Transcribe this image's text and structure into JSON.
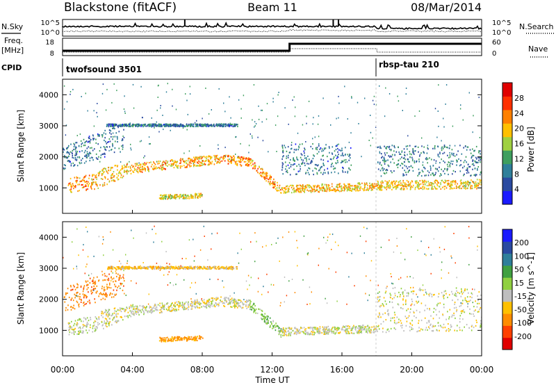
{
  "header": {
    "station": "Blackstone (fitACF)",
    "beam": "Beam 11",
    "date": "08/Mar/2014"
  },
  "left_labels": {
    "nsky": "N.Sky",
    "freq_line1": "Freq.",
    "freq_line2": "[MHz]",
    "cpid": "CPID"
  },
  "right_labels": {
    "nsearch": "N.Search",
    "nave": "Nave"
  },
  "noise_panel": {
    "left_ticks": [
      "10^5",
      "10^0"
    ],
    "right_ticks": [
      "10^5",
      "10^0"
    ]
  },
  "freq_panel": {
    "left_ticks": [
      "18",
      "8"
    ],
    "right_ticks": [
      "60",
      "0"
    ]
  },
  "cpid_panel": {
    "modes": [
      {
        "label": "twofsound 3501",
        "start_h": 0
      },
      {
        "label": "rbsp-tau 210",
        "start_h": 18
      }
    ]
  },
  "x_axis": {
    "label": "Time UT",
    "ticks": [
      "00:00",
      "04:00",
      "08:00",
      "12:00",
      "16:00",
      "20:00",
      "00:00"
    ]
  },
  "chart_data": [
    {
      "type": "heatmap",
      "title": "",
      "xlabel": "Time UT",
      "ylabel": "Slant Range [km]",
      "xlim": [
        0,
        24
      ],
      "ylim": [
        180,
        4500
      ],
      "yticks": [
        "1000",
        "2000",
        "3000",
        "4000"
      ],
      "colorbar": {
        "label": "Power [dB]",
        "range": [
          0,
          32
        ],
        "ticks": [
          "4",
          "8",
          "12",
          "16",
          "20",
          "24",
          "28"
        ]
      },
      "colors": [
        "#1a1aff",
        "#2a4aa0",
        "#2f7f9a",
        "#3f9f5f",
        "#9fd040",
        "#ffc000",
        "#ff8000",
        "#ff3000",
        "#e00000"
      ],
      "scatter_bands": [
        {
          "t0": 0.3,
          "t1": 2.0,
          "r0": 850,
          "r1": 1000,
          "r2": 1350,
          "r3": 1500,
          "p": 22
        },
        {
          "t0": 2.0,
          "t1": 4.0,
          "r0": 1000,
          "r1": 1500,
          "r2": 1650,
          "r3": 1850,
          "p": 20
        },
        {
          "t0": 4.0,
          "t1": 9.0,
          "r0": 1500,
          "r1": 1800,
          "r2": 1800,
          "r3": 2100,
          "p": 21
        },
        {
          "t0": 9.0,
          "t1": 10.7,
          "r0": 1800,
          "r1": 1700,
          "r2": 2100,
          "r3": 2000,
          "p": 23
        },
        {
          "t0": 10.7,
          "t1": 12.5,
          "r0": 1700,
          "r1": 800,
          "r2": 2000,
          "r3": 1100,
          "p": 22
        },
        {
          "t0": 12.5,
          "t1": 18.0,
          "r0": 850,
          "r1": 950,
          "r2": 1100,
          "r3": 1200,
          "p": 20
        },
        {
          "t0": 18.0,
          "t1": 24.0,
          "r0": 950,
          "r1": 1000,
          "r2": 1250,
          "r3": 1300,
          "p": 19
        },
        {
          "t0": 18.0,
          "t1": 24.0,
          "r0": 1400,
          "r1": 1400,
          "r2": 2400,
          "r3": 2400,
          "p": 9
        },
        {
          "t0": 5.5,
          "t1": 8.0,
          "r0": 650,
          "r1": 700,
          "r2": 800,
          "r3": 850,
          "p": 18
        },
        {
          "t0": 0.0,
          "t1": 3.5,
          "r0": 1600,
          "r1": 2200,
          "r2": 2400,
          "r3": 3100,
          "p": 8
        },
        {
          "t0": 2.5,
          "t1": 10.0,
          "r0": 3000,
          "r1": 3000,
          "r2": 3080,
          "r3": 3080,
          "p": 8
        },
        {
          "t0": 12.5,
          "t1": 16.5,
          "r0": 1400,
          "r1": 1500,
          "r2": 2500,
          "r3": 2400,
          "p": 8
        }
      ]
    },
    {
      "type": "heatmap",
      "title": "",
      "xlabel": "Time UT",
      "ylabel": "Slant Range [km]",
      "xlim": [
        0,
        24
      ],
      "ylim": [
        180,
        4500
      ],
      "yticks": [
        "1000",
        "2000",
        "3000",
        "4000"
      ],
      "colorbar": {
        "label": "Velocity [m s^-1]",
        "range": [
          -250,
          250
        ],
        "ticks": [
          "200",
          "100",
          "50",
          "15",
          "-15",
          "-50",
          "-100",
          "-200"
        ]
      },
      "colors": [
        "#e00000",
        "#ff4000",
        "#ff8c00",
        "#ffc000",
        "#bebebe",
        "#90d040",
        "#40a040",
        "#2f7f9a",
        "#2a4aa0",
        "#1a1aff"
      ],
      "scatter_bands": [
        {
          "t0": 0.3,
          "t1": 2.0,
          "r0": 850,
          "r1": 1000,
          "r2": 1350,
          "r3": 1500,
          "v": 0
        },
        {
          "t0": 2.0,
          "t1": 4.0,
          "r0": 1000,
          "r1": 1500,
          "r2": 1650,
          "r3": 1850,
          "v": 0
        },
        {
          "t0": 4.0,
          "t1": 9.0,
          "r0": 1500,
          "r1": 1800,
          "r2": 1800,
          "r3": 2100,
          "v": 0
        },
        {
          "t0": 9.0,
          "t1": 10.7,
          "r0": 1800,
          "r1": 1700,
          "r2": 2100,
          "r3": 2000,
          "v": 0
        },
        {
          "t0": 10.7,
          "t1": 12.5,
          "r0": 1700,
          "r1": 800,
          "r2": 2000,
          "r3": 1100,
          "v": 40
        },
        {
          "t0": 12.5,
          "t1": 18.0,
          "r0": 850,
          "r1": 950,
          "r2": 1100,
          "r3": 1200,
          "v": 0
        },
        {
          "t0": 18.0,
          "t1": 24.0,
          "r0": 950,
          "r1": 1000,
          "r2": 2400,
          "r3": 2400,
          "v": 0
        },
        {
          "t0": 5.5,
          "t1": 8.0,
          "r0": 650,
          "r1": 700,
          "r2": 800,
          "r3": 850,
          "v": -60
        },
        {
          "t0": 0.0,
          "t1": 3.5,
          "r0": 1600,
          "r1": 2200,
          "r2": 2400,
          "r3": 3100,
          "v": -80
        },
        {
          "t0": 2.5,
          "t1": 10.0,
          "r0": 3000,
          "r1": 3000,
          "r2": 3080,
          "r3": 3080,
          "v": -30
        }
      ]
    }
  ]
}
